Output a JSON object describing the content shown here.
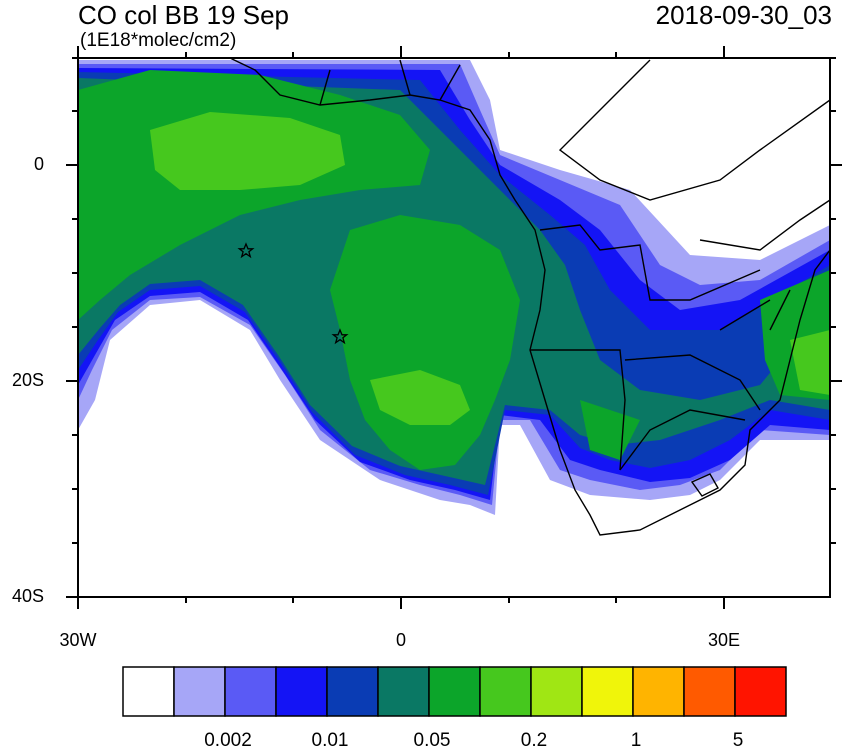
{
  "header": {
    "title": "CO col BB 19 Sep",
    "units": "(1E18*molec/cm2)",
    "datetime": "2018-09-30_03"
  },
  "axes": {
    "lat_labels": [
      "0",
      "20S",
      "40S"
    ],
    "lon_labels": [
      "30W",
      "0",
      "30E"
    ]
  },
  "colorbar": {
    "colors": [
      "#ffffff",
      "#a6a6f7",
      "#5a5af5",
      "#1414f5",
      "#0a3cb4",
      "#0a7864",
      "#0ca52a",
      "#46c81e",
      "#a0e614",
      "#f0f50a",
      "#ffb400",
      "#ff5a00",
      "#ff1400"
    ],
    "labels": [
      "0.002",
      "0.01",
      "0.05",
      "0.2",
      "1",
      "5"
    ]
  },
  "markers": [
    "star-marker-1",
    "star-marker-2"
  ]
}
